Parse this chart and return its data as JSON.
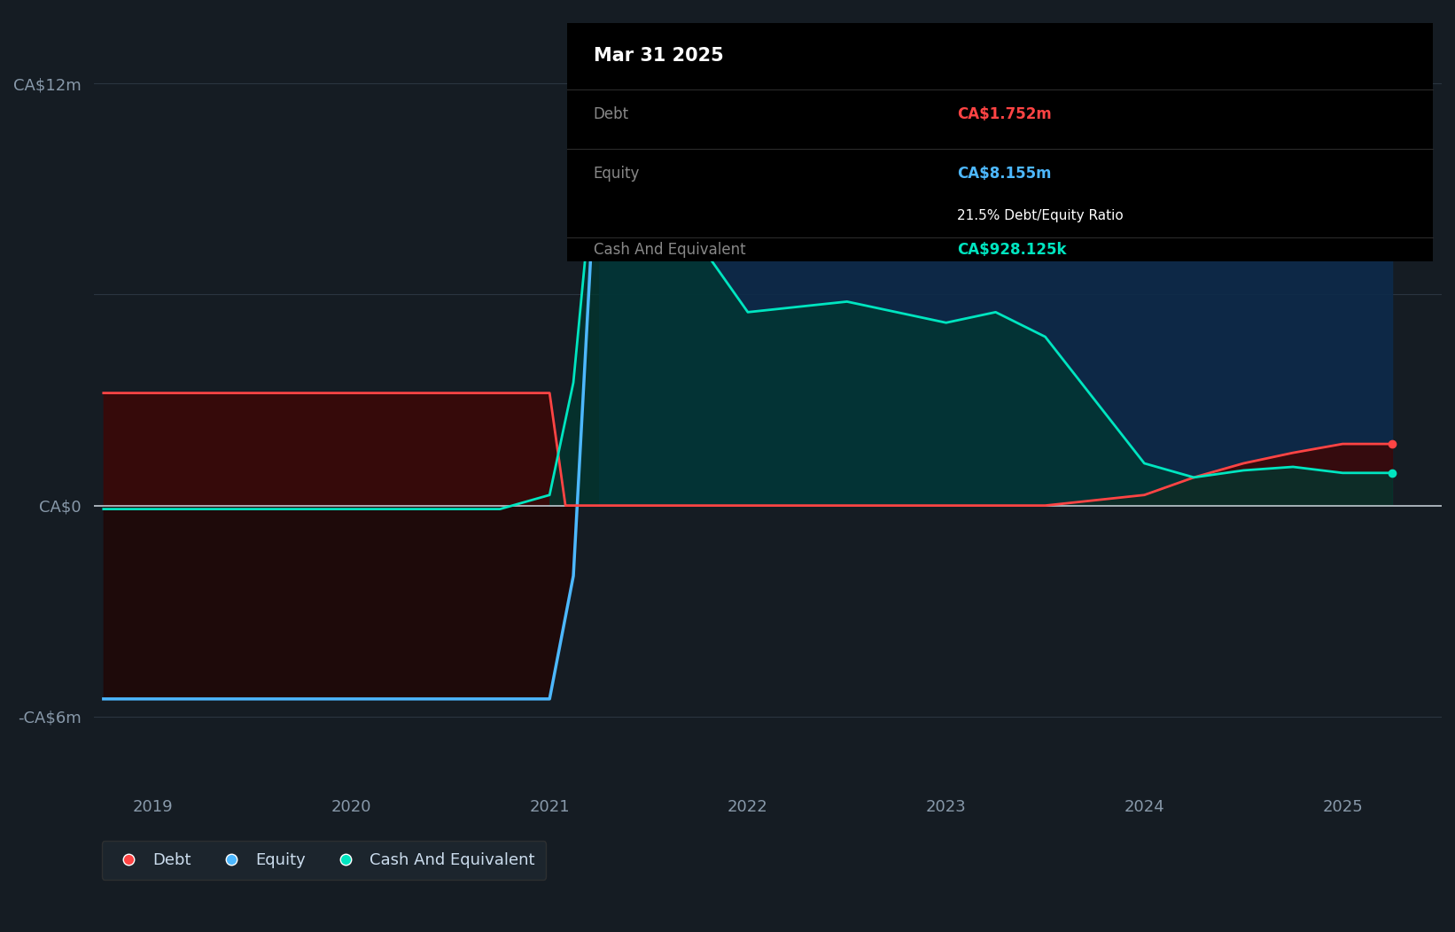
{
  "background_color": "#151c23",
  "plot_bg_color": "#151c23",
  "grid_color": "#2a3540",
  "zero_line_color": "#c0c8d0",
  "tooltip": {
    "title": "Mar 31 2025",
    "debt_label": "Debt",
    "debt_value": "CA$1.752m",
    "equity_label": "Equity",
    "equity_value": "CA$8.155m",
    "ratio_text": "21.5% Debt/Equity Ratio",
    "cash_label": "Cash And Equivalent",
    "cash_value": "CA$928.125k"
  },
  "y_ticks": [
    "CA$12m",
    "CA$0",
    "-CA$6m"
  ],
  "y_tick_values": [
    12,
    0,
    -6
  ],
  "x_ticks": [
    "2019",
    "2020",
    "2021",
    "2022",
    "2023",
    "2024",
    "2025"
  ],
  "ylim": [
    -8,
    14
  ],
  "xlim_start": 2018.7,
  "xlim_end": 2025.5,
  "legend": [
    {
      "label": "Debt",
      "color": "#ff4444"
    },
    {
      "label": "Equity",
      "color": "#4db8ff"
    },
    {
      "label": "Cash And Equivalent",
      "color": "#00e5c0"
    }
  ],
  "debt_color": "#ff4444",
  "equity_color": "#4db8ff",
  "cash_color": "#00e5c0",
  "debt_x": [
    2018.75,
    2019.0,
    2019.25,
    2019.5,
    2019.75,
    2020.0,
    2020.25,
    2020.5,
    2020.75,
    2021.0,
    2021.08,
    2021.25,
    2021.5,
    2022.0,
    2022.5,
    2023.0,
    2023.5,
    2024.0,
    2024.25,
    2024.5,
    2024.75,
    2025.0,
    2025.25
  ],
  "debt_y": [
    3.2,
    3.2,
    3.2,
    3.2,
    3.2,
    3.2,
    3.2,
    3.2,
    3.2,
    3.2,
    0.0,
    0.0,
    0.0,
    0.0,
    0.0,
    0.0,
    0.0,
    0.3,
    0.8,
    1.2,
    1.5,
    1.752,
    1.752
  ],
  "equity_x": [
    2018.75,
    2019.0,
    2019.5,
    2020.0,
    2020.5,
    2020.75,
    2021.0,
    2021.12,
    2021.25,
    2021.5,
    2022.0,
    2022.5,
    2023.0,
    2023.25,
    2023.5,
    2024.0,
    2024.25,
    2024.5,
    2024.75,
    2025.0,
    2025.25
  ],
  "equity_y": [
    -5.5,
    -5.5,
    -5.5,
    -5.5,
    -5.5,
    -5.5,
    -5.5,
    -2.0,
    11.5,
    10.5,
    9.0,
    9.5,
    10.5,
    11.0,
    10.5,
    9.5,
    9.2,
    9.0,
    8.8,
    8.155,
    8.155
  ],
  "cash_x": [
    2018.75,
    2019.0,
    2019.5,
    2020.0,
    2020.5,
    2020.75,
    2021.0,
    2021.12,
    2021.25,
    2021.5,
    2022.0,
    2022.5,
    2023.0,
    2023.25,
    2023.5,
    2024.0,
    2024.25,
    2024.5,
    2024.75,
    2025.0,
    2025.25
  ],
  "cash_y": [
    -0.1,
    -0.1,
    -0.1,
    -0.1,
    -0.1,
    -0.1,
    0.3,
    3.5,
    11.2,
    9.5,
    5.5,
    5.8,
    5.2,
    5.5,
    4.8,
    1.2,
    0.8,
    1.0,
    1.1,
    0.928,
    0.928
  ]
}
